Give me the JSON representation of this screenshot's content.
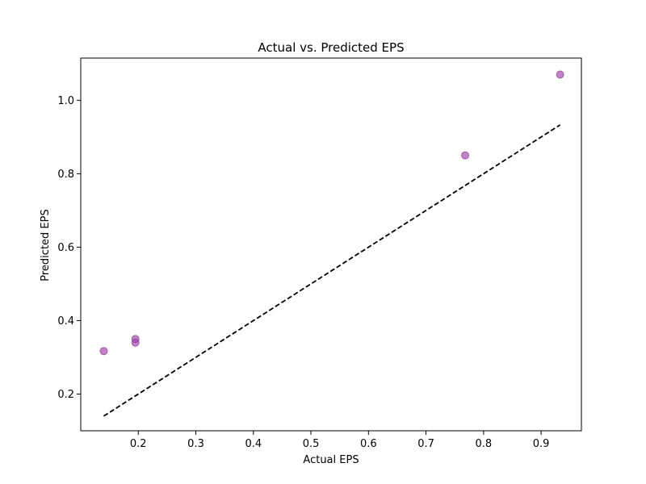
{
  "chart_data": {
    "type": "scatter",
    "title": "Actual vs. Predicted EPS",
    "xlabel": "Actual EPS",
    "ylabel": "Predicted EPS",
    "xlim": [
      0.1,
      0.97
    ],
    "ylim": [
      0.1,
      1.115
    ],
    "xticks": [
      "0.2",
      "0.3",
      "0.4",
      "0.5",
      "0.6",
      "0.7",
      "0.8",
      "0.9"
    ],
    "yticks": [
      "0.2",
      "0.4",
      "0.6",
      "0.8",
      "1.0"
    ],
    "grid": false,
    "series": [
      {
        "kind": "points",
        "color": "#9b3fa6",
        "points": [
          {
            "x": 0.14,
            "y": 0.317
          },
          {
            "x": 0.195,
            "y": 0.35
          },
          {
            "x": 0.195,
            "y": 0.34
          },
          {
            "x": 0.768,
            "y": 0.85
          },
          {
            "x": 0.933,
            "y": 1.07
          }
        ]
      },
      {
        "kind": "reference-line",
        "style": "dashed",
        "color": "#000000",
        "points": [
          {
            "x": 0.14,
            "y": 0.14
          },
          {
            "x": 0.933,
            "y": 0.933
          }
        ]
      }
    ]
  }
}
